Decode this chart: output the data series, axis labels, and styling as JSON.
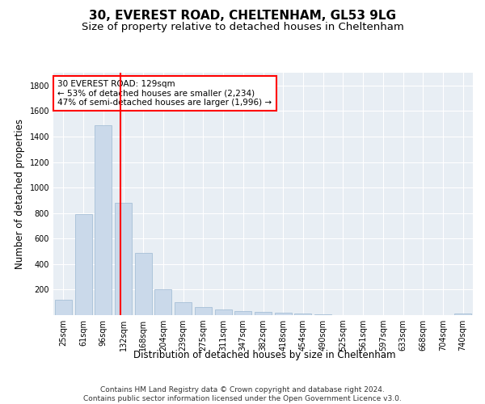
{
  "title1": "30, EVEREST ROAD, CHELTENHAM, GL53 9LG",
  "title2": "Size of property relative to detached houses in Cheltenham",
  "xlabel": "Distribution of detached houses by size in Cheltenham",
  "ylabel": "Number of detached properties",
  "categories": [
    "25sqm",
    "61sqm",
    "96sqm",
    "132sqm",
    "168sqm",
    "204sqm",
    "239sqm",
    "275sqm",
    "311sqm",
    "347sqm",
    "382sqm",
    "418sqm",
    "454sqm",
    "490sqm",
    "525sqm",
    "561sqm",
    "597sqm",
    "633sqm",
    "668sqm",
    "704sqm",
    "740sqm"
  ],
  "values": [
    120,
    790,
    1490,
    880,
    490,
    200,
    100,
    65,
    45,
    32,
    25,
    20,
    10,
    5,
    3,
    2,
    1,
    1,
    1,
    1,
    15
  ],
  "bar_color": "#cad9ea",
  "bar_edge_color": "#9db8d2",
  "vline_color": "red",
  "vline_x_index": 2.85,
  "annotation_text": "30 EVEREST ROAD: 129sqm\n← 53% of detached houses are smaller (2,234)\n47% of semi-detached houses are larger (1,996) →",
  "annotation_box_color": "white",
  "annotation_box_edge_color": "red",
  "footer_text": "Contains HM Land Registry data © Crown copyright and database right 2024.\nContains public sector information licensed under the Open Government Licence v3.0.",
  "ylim": [
    0,
    1900
  ],
  "plot_bg_color": "#e8eef4",
  "grid_color": "#ffffff",
  "title_fontsize": 11,
  "subtitle_fontsize": 9.5,
  "axis_label_fontsize": 8.5,
  "tick_fontsize": 7,
  "annotation_fontsize": 7.5,
  "footer_fontsize": 6.5,
  "yticks": [
    0,
    200,
    400,
    600,
    800,
    1000,
    1200,
    1400,
    1600,
    1800
  ]
}
